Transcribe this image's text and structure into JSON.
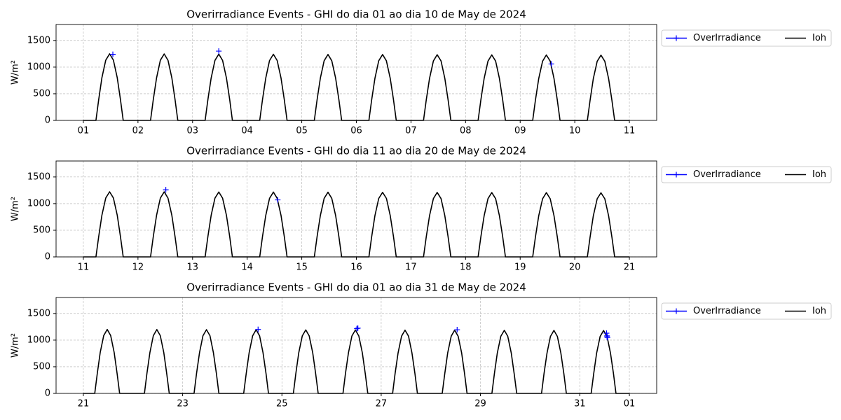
{
  "chart_data": [
    {
      "type": "line",
      "title": "Overirradiance Events - GHI  do dia 01 ao dia 10 de May de 2024",
      "ylabel": "W/m²",
      "xlim": [
        0.5,
        11.5
      ],
      "ylim": [
        0,
        1800
      ],
      "xticks": [
        {
          "value": 1,
          "label": "01"
        },
        {
          "value": 2,
          "label": "02"
        },
        {
          "value": 3,
          "label": "03"
        },
        {
          "value": 4,
          "label": "04"
        },
        {
          "value": 5,
          "label": "05"
        },
        {
          "value": 6,
          "label": "06"
        },
        {
          "value": 7,
          "label": "07"
        },
        {
          "value": 8,
          "label": "08"
        },
        {
          "value": 9,
          "label": "09"
        },
        10,
        11
      ],
      "yticks": [
        0,
        500,
        1000,
        1500
      ],
      "grid": true,
      "legend": "outside-upper-right",
      "series": [
        {
          "name": "OverIrradiance",
          "color": "blue",
          "marker": "+",
          "x": [
            1.54,
            3.48,
            9.57
          ],
          "values": [
            1240,
            1300,
            1060
          ]
        },
        {
          "name": "Ioh",
          "color": "black",
          "x": [
            1,
            1.23,
            1.28,
            1.34,
            1.41,
            1.48,
            1.55,
            1.62,
            1.68,
            1.73,
            2,
            2.23,
            2.28,
            2.34,
            2.41,
            2.48,
            2.55,
            2.62,
            2.68,
            2.73,
            3,
            3.23,
            3.28,
            3.34,
            3.41,
            3.48,
            3.55,
            3.62,
            3.68,
            3.73,
            4,
            4.23,
            4.28,
            4.34,
            4.41,
            4.48,
            4.55,
            4.62,
            4.68,
            4.73,
            5,
            5.23,
            5.28,
            5.34,
            5.41,
            5.48,
            5.55,
            5.62,
            5.68,
            5.73,
            6,
            6.23,
            6.28,
            6.34,
            6.41,
            6.48,
            6.55,
            6.62,
            6.68,
            6.73,
            7,
            7.23,
            7.28,
            7.34,
            7.41,
            7.48,
            7.55,
            7.62,
            7.68,
            7.73,
            8,
            8.23,
            8.28,
            8.34,
            8.41,
            8.48,
            8.55,
            8.62,
            8.68,
            8.73,
            9,
            9.23,
            9.28,
            9.34,
            9.41,
            9.48,
            9.55,
            9.62,
            9.68,
            9.73,
            10,
            10.23,
            10.28,
            10.34,
            10.41,
            10.48,
            10.55,
            10.62,
            10.68,
            10.73,
            11
          ],
          "values": [
            0,
            0,
            388,
            800,
            1131,
            1250,
            1131,
            800,
            388,
            0,
            0,
            0,
            387,
            798,
            1129,
            1247,
            1129,
            798,
            387,
            0,
            0,
            0,
            386,
            796,
            1126,
            1244,
            1126,
            796,
            386,
            0,
            0,
            0,
            385,
            794,
            1123,
            1241,
            1123,
            794,
            385,
            0,
            0,
            0,
            384,
            792,
            1120,
            1238,
            1120,
            792,
            384,
            0,
            0,
            0,
            383,
            791,
            1119,
            1236,
            1119,
            791,
            383,
            0,
            0,
            0,
            382,
            789,
            1116,
            1233,
            1116,
            789,
            382,
            0,
            0,
            0,
            381,
            787,
            1113,
            1230,
            1113,
            787,
            381,
            0,
            0,
            0,
            381,
            786,
            1111,
            1228,
            1111,
            786,
            381,
            0,
            0,
            0,
            380,
            784,
            1109,
            1225,
            1109,
            784,
            380,
            0,
            0
          ]
        }
      ]
    },
    {
      "type": "line",
      "title": "Overirradiance Events - GHI  do dia 11 ao dia 20 de May de 2024",
      "ylabel": "W/m²",
      "xlim": [
        10.5,
        21.5
      ],
      "ylim": [
        0,
        1800
      ],
      "xticks": [
        11,
        12,
        13,
        14,
        15,
        16,
        17,
        18,
        19,
        20,
        21
      ],
      "yticks": [
        0,
        500,
        1000,
        1500
      ],
      "grid": true,
      "legend": "outside-upper-right",
      "series": [
        {
          "name": "OverIrradiance",
          "color": "blue",
          "marker": "+",
          "x": [
            12.51,
            14.56
          ],
          "values": [
            1260,
            1070
          ]
        },
        {
          "name": "Ioh",
          "color": "black",
          "x": [
            11,
            11.23,
            11.28,
            11.34,
            11.41,
            11.48,
            11.55,
            11.62,
            11.68,
            11.73,
            12,
            12.23,
            12.28,
            12.34,
            12.41,
            12.48,
            12.55,
            12.62,
            12.68,
            12.73,
            13,
            13.23,
            13.28,
            13.34,
            13.41,
            13.48,
            13.55,
            13.62,
            13.68,
            13.73,
            14,
            14.23,
            14.28,
            14.34,
            14.41,
            14.48,
            14.55,
            14.62,
            14.68,
            14.73,
            15,
            15.23,
            15.28,
            15.34,
            15.41,
            15.48,
            15.55,
            15.62,
            15.68,
            15.73,
            16,
            16.23,
            16.28,
            16.34,
            16.41,
            16.48,
            16.55,
            16.62,
            16.68,
            16.73,
            17,
            17.23,
            17.28,
            17.34,
            17.41,
            17.48,
            17.55,
            17.62,
            17.68,
            17.73,
            18,
            18.23,
            18.28,
            18.34,
            18.41,
            18.48,
            18.55,
            18.62,
            18.68,
            18.73,
            19,
            19.23,
            19.28,
            19.34,
            19.41,
            19.48,
            19.55,
            19.62,
            19.68,
            19.73,
            20,
            20.23,
            20.28,
            20.34,
            20.41,
            20.48,
            20.55,
            20.62,
            20.68,
            20.73,
            21
          ],
          "values": [
            0,
            0,
            379,
            782,
            1106,
            1222,
            1106,
            782,
            379,
            0,
            0,
            0,
            378,
            781,
            1104,
            1220,
            1104,
            781,
            378,
            0,
            0,
            0,
            378,
            780,
            1102,
            1218,
            1102,
            780,
            378,
            0,
            0,
            0,
            377,
            778,
            1100,
            1216,
            1100,
            778,
            377,
            0,
            0,
            0,
            376,
            777,
            1099,
            1214,
            1099,
            777,
            376,
            0,
            0,
            0,
            376,
            776,
            1097,
            1212,
            1097,
            776,
            376,
            0,
            0,
            0,
            375,
            774,
            1095,
            1210,
            1095,
            774,
            375,
            0,
            0,
            0,
            374,
            773,
            1093,
            1208,
            1093,
            773,
            374,
            0,
            0,
            0,
            374,
            772,
            1091,
            1206,
            1091,
            772,
            374,
            0,
            0,
            0,
            373,
            771,
            1090,
            1204,
            1090,
            771,
            373,
            0,
            0
          ]
        }
      ]
    },
    {
      "type": "line",
      "title": "Overirradiance Events - GHI  do dia 01 ao dia 31 de May de 2024",
      "ylabel": "W/m²",
      "xlim": [
        20.45,
        32.55
      ],
      "ylim": [
        0,
        1800
      ],
      "xticks": [
        21,
        23,
        25,
        27,
        29,
        31,
        {
          "value": 32,
          "label": "01"
        }
      ],
      "yticks": [
        0,
        500,
        1000,
        1500
      ],
      "grid": true,
      "legend": "outside-upper-right",
      "series": [
        {
          "name": "OverIrradiance",
          "color": "blue",
          "marker": "+",
          "x": [
            24.52,
            26.51,
            26.53,
            28.53,
            31.54,
            31.55,
            31.55,
            31.56
          ],
          "values": [
            1200,
            1215,
            1225,
            1195,
            1130,
            1080,
            1060,
            1050
          ]
        },
        {
          "name": "Ioh",
          "color": "black",
          "x": [
            21,
            21.23,
            21.28,
            21.34,
            21.41,
            21.48,
            21.55,
            21.62,
            21.68,
            21.73,
            22,
            22.23,
            22.28,
            22.34,
            22.41,
            22.48,
            22.55,
            22.62,
            22.68,
            22.73,
            23,
            23.23,
            23.28,
            23.34,
            23.41,
            23.48,
            23.55,
            23.62,
            23.68,
            23.73,
            24,
            24.23,
            24.28,
            24.34,
            24.41,
            24.48,
            24.55,
            24.62,
            24.68,
            24.73,
            25,
            25.23,
            25.28,
            25.34,
            25.41,
            25.48,
            25.55,
            25.62,
            25.68,
            25.73,
            26,
            26.23,
            26.28,
            26.34,
            26.41,
            26.48,
            26.55,
            26.62,
            26.68,
            26.73,
            27,
            27.23,
            27.28,
            27.34,
            27.41,
            27.48,
            27.55,
            27.62,
            27.68,
            27.73,
            28,
            28.23,
            28.28,
            28.34,
            28.41,
            28.48,
            28.55,
            28.62,
            28.68,
            28.73,
            29,
            29.23,
            29.28,
            29.34,
            29.41,
            29.48,
            29.55,
            29.62,
            29.68,
            29.73,
            30,
            30.23,
            30.28,
            30.34,
            30.41,
            30.48,
            30.55,
            30.62,
            30.68,
            30.73,
            31,
            31.23,
            31.28,
            31.34,
            31.41,
            31.48,
            31.55,
            31.62,
            31.68,
            31.73,
            32
          ],
          "values": [
            0,
            0,
            372,
            768,
            1086,
            1200,
            1086,
            768,
            372,
            0,
            0,
            0,
            371,
            767,
            1084,
            1198,
            1084,
            767,
            371,
            0,
            0,
            0,
            371,
            765,
            1082,
            1196,
            1082,
            765,
            371,
            0,
            0,
            0,
            370,
            764,
            1081,
            1194,
            1081,
            764,
            370,
            0,
            0,
            0,
            370,
            763,
            1079,
            1192,
            1079,
            763,
            370,
            0,
            0,
            0,
            369,
            762,
            1077,
            1190,
            1077,
            762,
            369,
            0,
            0,
            0,
            368,
            760,
            1075,
            1188,
            1075,
            760,
            368,
            0,
            0,
            0,
            368,
            759,
            1073,
            1186,
            1073,
            759,
            368,
            0,
            0,
            0,
            367,
            758,
            1072,
            1184,
            1072,
            758,
            367,
            0,
            0,
            0,
            366,
            756,
            1070,
            1182,
            1070,
            756,
            366,
            0,
            0,
            0,
            366,
            755,
            1068,
            1180,
            1068,
            755,
            366,
            0,
            0
          ]
        }
      ]
    }
  ]
}
